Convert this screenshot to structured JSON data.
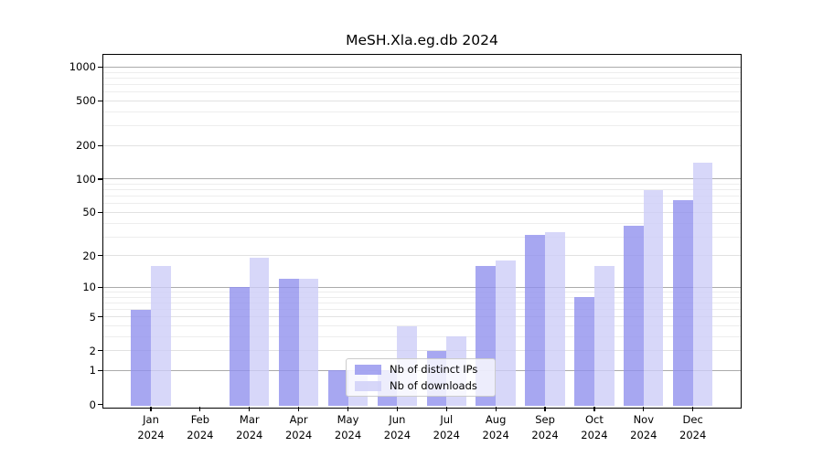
{
  "title": "MeSH.Xla.eg.db 2024",
  "legend": {
    "items": [
      {
        "label": "Nb of distinct IPs",
        "series": "ips"
      },
      {
        "label": "Nb of downloads",
        "series": "downloads"
      }
    ]
  },
  "colors": {
    "ips_bar": "rgba(145,145,237,0.8)",
    "downloads_bar": "rgba(205,205,247,0.8)",
    "grid_major": "#ababab",
    "grid_mid": "#e2e2e2",
    "grid_minor": "#ededed",
    "axis_frame": "#000000",
    "legend_border": "#cccccc",
    "text": "#000000"
  },
  "chart_data": {
    "type": "bar",
    "title": "MeSH.Xla.eg.db 2024",
    "y_scale": "log1p",
    "grid": true,
    "legend_position": "lower-center-inside",
    "categories": [
      "Jan",
      "Feb",
      "Mar",
      "Apr",
      "May",
      "Jun",
      "Jul",
      "Aug",
      "Sep",
      "Oct",
      "Nov",
      "Dec"
    ],
    "year_label": "2024",
    "series": [
      {
        "name": "Nb of distinct IPs",
        "values": [
          6,
          0,
          10,
          12,
          1,
          1,
          2,
          16,
          31,
          8,
          38,
          65
        ]
      },
      {
        "name": "Nb of downloads",
        "values": [
          16,
          0,
          19,
          12,
          1,
          4,
          3,
          18,
          33,
          16,
          80,
          140
        ]
      }
    ],
    "y_ticks": [
      0,
      1,
      2,
      5,
      10,
      20,
      50,
      100,
      200,
      500,
      1000
    ],
    "y_tick_labels": [
      "0",
      "1",
      "2",
      "5",
      "10",
      "20",
      "50",
      "100",
      "200",
      "500",
      "1000"
    ],
    "y_major_gridlines": [
      1,
      10,
      100,
      1000
    ],
    "y_mid_gridlines": [
      2,
      5,
      20,
      50,
      200,
      500
    ],
    "y_minor_gridlines": [
      3,
      4,
      6,
      7,
      8,
      9,
      30,
      40,
      60,
      70,
      80,
      90,
      300,
      400,
      600,
      700,
      800,
      900
    ],
    "ylim": [
      0,
      1200
    ]
  }
}
